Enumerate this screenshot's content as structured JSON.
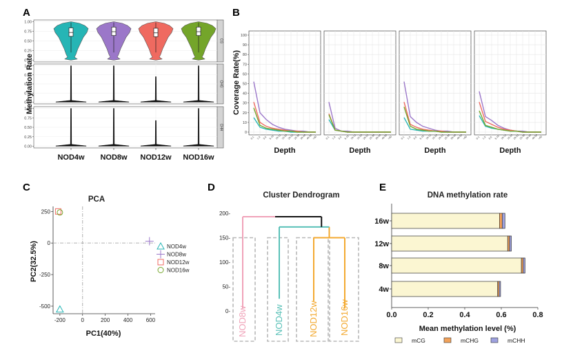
{
  "panel_labels": {
    "a": "A",
    "b": "B",
    "c": "C",
    "d": "D",
    "e": "E"
  },
  "colors": {
    "nod4w": "#26b5b5",
    "nod8w": "#9b77c9",
    "nod12w": "#ef6a60",
    "nod16w": "#74a52a",
    "mcg": "#fbf6d2",
    "mchg": "#f2a25a",
    "mchh": "#9ea1df",
    "dendro_nod8w": "#f0a2b8",
    "dendro_nod4w": "#58c0b7",
    "dendro_orange": "#f3a92f"
  },
  "chart_data": [
    {
      "id": "A",
      "type": "violin",
      "ylabel": "Methylation Rate",
      "categories": [
        "NOD4w",
        "NOD8w",
        "NOD12w",
        "NOD16w"
      ],
      "facets": [
        "CG",
        "CHG",
        "CHH"
      ],
      "yticks": [
        "0.00",
        "0.25",
        "0.50",
        "0.75",
        "1.00"
      ],
      "ylim": [
        0,
        1
      ],
      "cg_medians": [
        0.72,
        0.74,
        0.71,
        0.74
      ],
      "non_cg_maxima": {
        "CHG": [
          1.0,
          1.0,
          0.7,
          1.0
        ],
        "CHH": [
          1.0,
          1.0,
          0.68,
          1.0
        ]
      }
    },
    {
      "id": "B",
      "type": "line",
      "ylabel": "Coverage Rate(%)",
      "xlabel": "Depth",
      "facets": 4,
      "yticks": [
        "0",
        "10",
        "20",
        "30",
        "40",
        "50",
        "60",
        "70",
        "80",
        "90",
        "100"
      ],
      "ylim": [
        0,
        100
      ],
      "x": [
        "0-1",
        "1-3",
        "3-5",
        "5-10",
        "10-15",
        "15-20",
        "20-25",
        "25-30",
        "30-40",
        "40-50",
        ">50"
      ],
      "series_names": [
        "NOD4w",
        "NOD8w",
        "NOD12w",
        "NOD16w"
      ],
      "panels": [
        {
          "series": [
            [
              15,
              5,
              3,
              2,
              1,
              1,
              0,
              0,
              0,
              0,
              0
            ],
            [
              52,
              20,
              13,
              8,
              5,
              3,
              2,
              1,
              1,
              0,
              0
            ],
            [
              31,
              10,
              6,
              4,
              3,
              2,
              1,
              1,
              0,
              0,
              0
            ],
            [
              25,
              7,
              4,
              3,
              2,
              1,
              1,
              0,
              0,
              0,
              0
            ]
          ]
        },
        {
          "series": [
            [
              13,
              2,
              1,
              0,
              0,
              0,
              0,
              0,
              0,
              0,
              0
            ],
            [
              31,
              4,
              1,
              1,
              0,
              0,
              0,
              0,
              0,
              0,
              0
            ],
            [
              19,
              2,
              1,
              0,
              0,
              0,
              0,
              0,
              0,
              0,
              0
            ],
            [
              18,
              2,
              1,
              0,
              0,
              0,
              0,
              0,
              0,
              0,
              0
            ]
          ]
        },
        {
          "series": [
            [
              15,
              3,
              2,
              1,
              1,
              1,
              0,
              0,
              0,
              0,
              0
            ],
            [
              52,
              16,
              10,
              6,
              4,
              2,
              1,
              1,
              0,
              0,
              0
            ],
            [
              31,
              8,
              5,
              3,
              2,
              1,
              1,
              0,
              0,
              0,
              0
            ],
            [
              26,
              6,
              3,
              2,
              1,
              1,
              0,
              0,
              0,
              0,
              0
            ]
          ]
        },
        {
          "series": [
            [
              17,
              6,
              4,
              3,
              2,
              1,
              1,
              0,
              0,
              0,
              0
            ],
            [
              42,
              16,
              12,
              7,
              4,
              2,
              1,
              1,
              0,
              0,
              0
            ],
            [
              31,
              11,
              8,
              5,
              3,
              2,
              1,
              0,
              0,
              0,
              0
            ],
            [
              22,
              7,
              5,
              3,
              2,
              1,
              1,
              0,
              0,
              0,
              0
            ]
          ]
        }
      ]
    },
    {
      "id": "C",
      "type": "scatter",
      "title": "PCA",
      "xlabel": "PC1(40%)",
      "ylabel": "PC2(32.5%)",
      "xticks": [
        "-200",
        "0",
        "200",
        "400",
        "600"
      ],
      "yticks": [
        "250",
        "0",
        "-250",
        "-500"
      ],
      "xlim": [
        -260,
        640
      ],
      "ylim": [
        -560,
        290
      ],
      "points": [
        {
          "name": "NOD4w",
          "x": -200,
          "y": -525,
          "marker": "triangle"
        },
        {
          "name": "NOD8w",
          "x": 590,
          "y": 14,
          "marker": "plus"
        },
        {
          "name": "NOD12w",
          "x": -215,
          "y": 250,
          "marker": "square"
        },
        {
          "name": "NOD16w",
          "x": -200,
          "y": 242,
          "marker": "circle"
        }
      ],
      "legend": [
        "NOD4w",
        "NOD8w",
        "NOD12w",
        "NOD16w"
      ]
    },
    {
      "id": "D",
      "type": "dendrogram",
      "title": "Cluster Dendrogram",
      "yticks": [
        "200-",
        "150-",
        "100-",
        "50-",
        "0-"
      ],
      "ylim": [
        -5,
        215
      ],
      "leaves": [
        "NOD8w",
        "NOD4w",
        "NOD12w",
        "NOD16w"
      ],
      "merge_heights": {
        "nod12w_nod16w": 150,
        "nod4w_cluster": 172,
        "root": 193
      },
      "leaf_heights": {
        "NOD8w": 5,
        "NOD4w": 25,
        "NOD12w": 20,
        "NOD16w": 5
      }
    },
    {
      "id": "E",
      "type": "bar",
      "orientation": "horizontal",
      "stacked": true,
      "title": "DNA methylation rate",
      "xlabel": "Mean methylation level (%)",
      "categories": [
        "16w",
        "12w",
        "8w",
        "4w"
      ],
      "xticks": [
        "0.0",
        "0.2",
        "0.4",
        "0.6",
        "0.8"
      ],
      "xlim": [
        0,
        0.8
      ],
      "series": [
        {
          "name": "mCG",
          "values": [
            0.59,
            0.635,
            0.71,
            0.58
          ]
        },
        {
          "name": "mCHG",
          "values": [
            0.015,
            0.01,
            0.01,
            0.008
          ]
        },
        {
          "name": "mCHH",
          "values": [
            0.015,
            0.01,
            0.01,
            0.008
          ]
        }
      ],
      "legend": [
        "mCG",
        "mCHG",
        "mCHH"
      ]
    }
  ]
}
